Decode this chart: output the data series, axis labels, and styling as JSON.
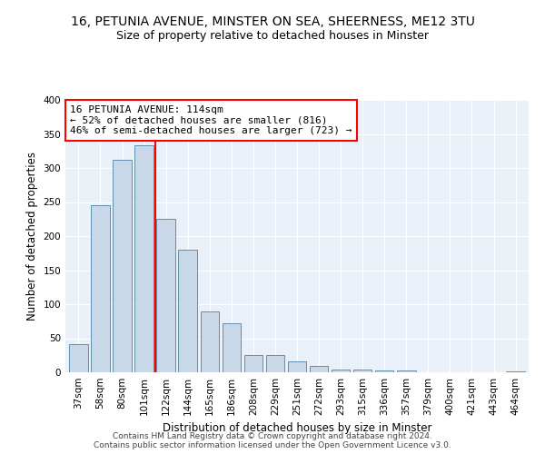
{
  "title_line1": "16, PETUNIA AVENUE, MINSTER ON SEA, SHEERNESS, ME12 3TU",
  "title_line2": "Size of property relative to detached houses in Minster",
  "xlabel": "Distribution of detached houses by size in Minster",
  "ylabel": "Number of detached properties",
  "categories": [
    "37sqm",
    "58sqm",
    "80sqm",
    "101sqm",
    "122sqm",
    "144sqm",
    "165sqm",
    "186sqm",
    "208sqm",
    "229sqm",
    "251sqm",
    "272sqm",
    "293sqm",
    "315sqm",
    "336sqm",
    "357sqm",
    "379sqm",
    "400sqm",
    "421sqm",
    "443sqm",
    "464sqm"
  ],
  "values": [
    42,
    245,
    312,
    333,
    225,
    180,
    90,
    72,
    25,
    25,
    16,
    10,
    4,
    4,
    3,
    3,
    0,
    0,
    0,
    0,
    2
  ],
  "bar_color": "#c8d8e8",
  "bar_edge_color": "#6090b0",
  "vline_x_index": 3.5,
  "vline_color": "red",
  "annotation_line1": "16 PETUNIA AVENUE: 114sqm",
  "annotation_line2": "← 52% of detached houses are smaller (816)",
  "annotation_line3": "46% of semi-detached houses are larger (723) →",
  "annotation_box_color": "white",
  "annotation_box_edge_color": "red",
  "ylim": [
    0,
    400
  ],
  "yticks": [
    0,
    50,
    100,
    150,
    200,
    250,
    300,
    350,
    400
  ],
  "background_color": "#eaf0f8",
  "footer_text": "Contains HM Land Registry data © Crown copyright and database right 2024.\nContains public sector information licensed under the Open Government Licence v3.0.",
  "title_fontsize": 10,
  "subtitle_fontsize": 9,
  "xlabel_fontsize": 8.5,
  "ylabel_fontsize": 8.5,
  "tick_fontsize": 7.5,
  "annotation_fontsize": 8,
  "footer_fontsize": 6.5
}
